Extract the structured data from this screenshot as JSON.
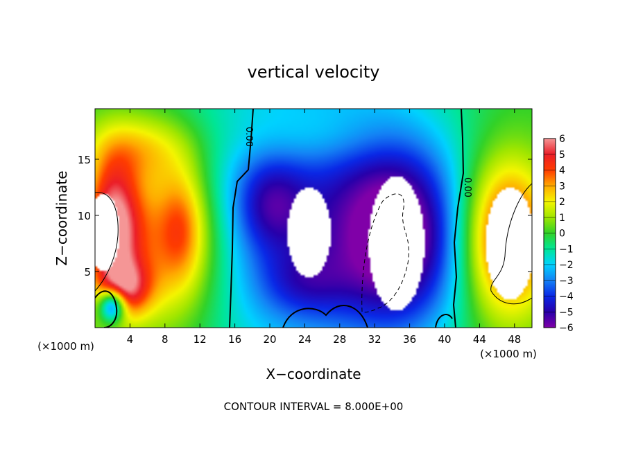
{
  "chart_data": {
    "type": "heatmap",
    "title": "vertical velocity",
    "xlabel": "X−coordinate",
    "ylabel": "Z−coordinate",
    "x_unit_left": "(×1000 m)",
    "x_unit_right": "(×1000 m)",
    "footer": "CONTOUR INTERVAL = 8.000E+00",
    "xlim": [
      0,
      50
    ],
    "ylim": [
      0,
      19.5
    ],
    "x_ticks": [
      4,
      8,
      12,
      16,
      20,
      24,
      28,
      32,
      36,
      40,
      44,
      48
    ],
    "y_ticks": [
      5,
      10,
      15
    ],
    "colorbar": {
      "min": -6,
      "max": 6,
      "ticks": [
        6,
        5,
        4,
        3,
        2,
        1,
        0,
        -1,
        -2,
        -3,
        -4,
        -5,
        -6
      ],
      "tick_labels": [
        "6",
        "5",
        "4",
        "3",
        "2",
        "1",
        "0",
        "−1",
        "−2",
        "−3",
        "−4",
        "−5",
        "−6"
      ]
    },
    "contour_labels": [
      {
        "text": "0.00",
        "x": 17.3,
        "y": 17.0
      },
      {
        "text": "0.00",
        "x": 42.3,
        "y": 12.5
      }
    ],
    "field_blobs": [
      {
        "x": 25,
        "y": 10,
        "rx": 16,
        "ry": 14,
        "w": -4.0
      },
      {
        "x": 35,
        "y": 8,
        "rx": 7,
        "ry": 8,
        "w": -4.5
      },
      {
        "x": 20,
        "y": 11,
        "rx": 4,
        "ry": 4,
        "w": -2.0
      },
      {
        "x": 24,
        "y": 4,
        "rx": 5,
        "ry": 3,
        "w": -1.5
      },
      {
        "x": 8,
        "y": 8,
        "rx": 7,
        "ry": 8,
        "w": 4.0
      },
      {
        "x": 2,
        "y": 9,
        "rx": 3,
        "ry": 6,
        "w": 5.5
      },
      {
        "x": 3.5,
        "y": 3.5,
        "rx": 3,
        "ry": 2.5,
        "w": 3.5
      },
      {
        "x": 10,
        "y": 9,
        "rx": 2.5,
        "ry": 5,
        "w": 2.0
      },
      {
        "x": 47,
        "y": 8,
        "rx": 5,
        "ry": 7,
        "w": 5.5
      },
      {
        "x": 2,
        "y": 2,
        "rx": 1.5,
        "ry": 1.5,
        "w": -6.0
      },
      {
        "x": 25,
        "y": 17,
        "rx": 9,
        "ry": 3,
        "w": 1.0
      },
      {
        "x": 5,
        "y": 16,
        "rx": 6,
        "ry": 3,
        "w": 2.0
      }
    ],
    "saturated_regions": [
      {
        "x": 24.5,
        "y": 8.5,
        "rx": 2.5,
        "ry": 4.0,
        "sign": -1
      },
      {
        "x": 34.5,
        "y": 7.5,
        "rx": 3.2,
        "ry": 6.0,
        "sign": -1
      },
      {
        "x": 1.0,
        "y": 8.5,
        "rx": 1.8,
        "ry": 3.5,
        "sign": 1
      },
      {
        "x": 47.5,
        "y": 7.5,
        "rx": 2.8,
        "ry": 5.0,
        "sign": 1
      }
    ]
  }
}
